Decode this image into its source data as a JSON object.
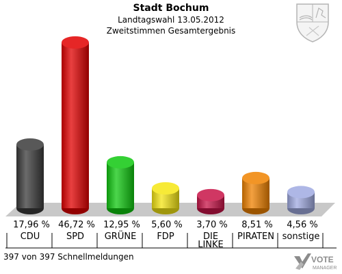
{
  "header": {
    "title": "Stadt Bochum",
    "subtitle1": "Landtagswahl 13.05.2012",
    "subtitle2": "Zweitstimmen Gesamtergebnis"
  },
  "footer": {
    "status": "397 von 397 Schnellmeldungen",
    "brand_line1": "VOTE",
    "brand_line2": "MANAGER"
  },
  "crest": {
    "icon": "nrw-coat-of-arms-icon"
  },
  "colors": {
    "floor": "#c8c8c8",
    "text": "#000000"
  },
  "chart_data": {
    "type": "bar",
    "categories": [
      "CDU",
      "SPD",
      "GRÜNE",
      "FDP",
      "DIE LINKE",
      "PIRATEN",
      "sonstige"
    ],
    "values": [
      17.96,
      46.72,
      12.95,
      5.6,
      3.7,
      8.51,
      4.56
    ],
    "value_labels": [
      "17,96 %",
      "46,72 %",
      "12,95 %",
      "5,60 %",
      "3,70 %",
      "8,51 %",
      "4,56 %"
    ],
    "colors": [
      "#3a3a3a",
      "#e10000",
      "#10c810",
      "#f5e614",
      "#c81448",
      "#f08200",
      "#a0aae1"
    ],
    "ylim": [
      0,
      46.72
    ],
    "grid": false
  }
}
